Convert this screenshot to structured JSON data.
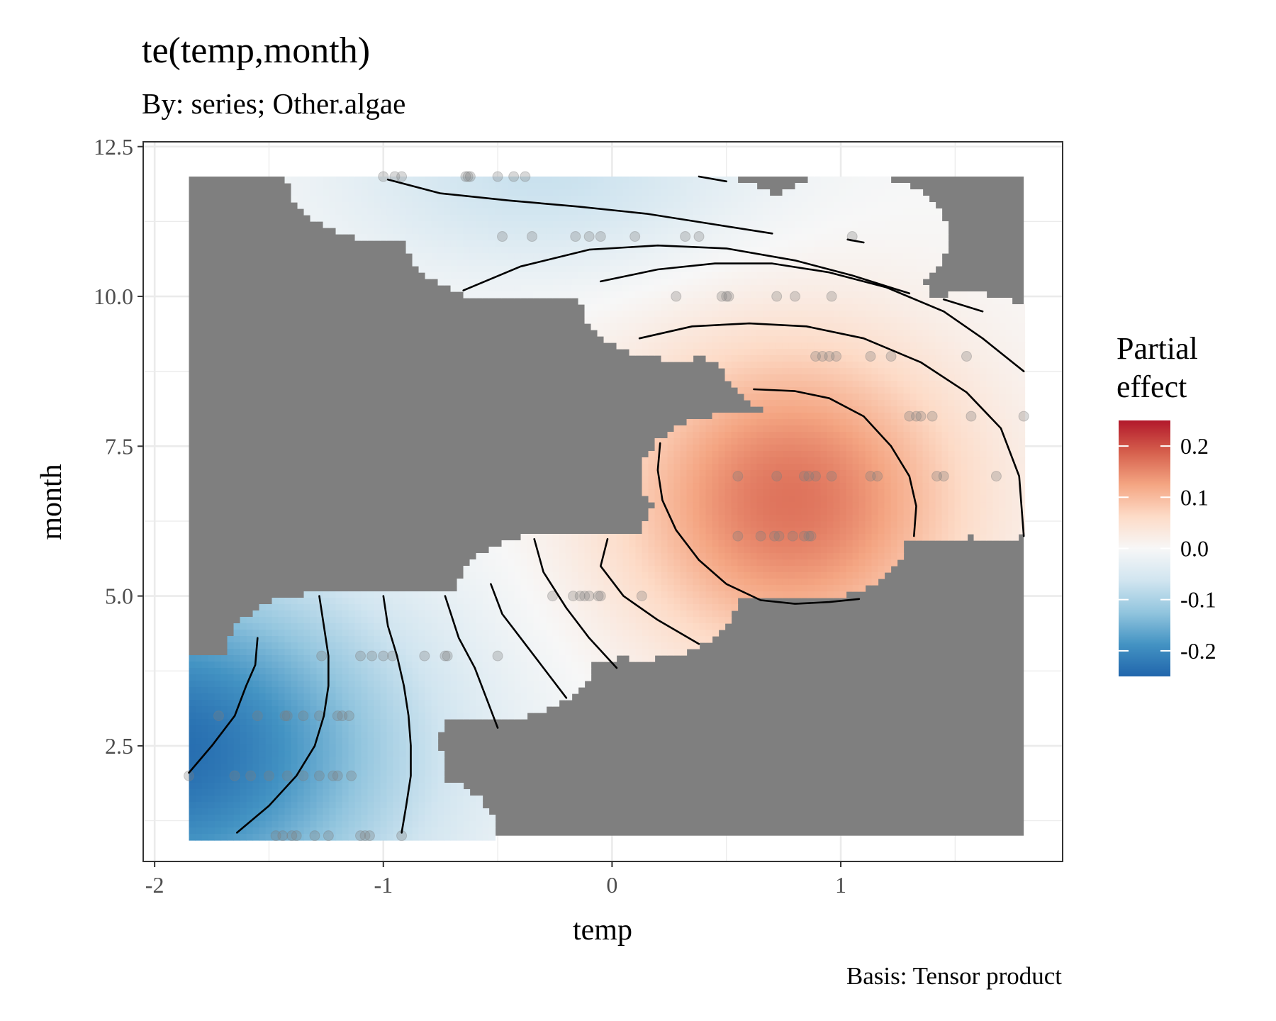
{
  "chart_data": {
    "type": "heatmap",
    "title": "te(temp,month)",
    "subtitle": "By: series; Other.algae",
    "caption": "Basis: Tensor product",
    "xlabel": "temp",
    "ylabel": "month",
    "xlim": [
      -2.05,
      1.97
    ],
    "ylim": [
      0.57,
      12.58
    ],
    "x_ticks": [
      -2,
      -1,
      0,
      1
    ],
    "x_tick_labels": [
      "-2",
      "-1",
      "0",
      "1"
    ],
    "y_ticks": [
      2.5,
      5.0,
      7.5,
      10.0,
      12.5
    ],
    "y_tick_labels": [
      "2.5",
      "5.0",
      "7.5",
      "10.0",
      "12.5"
    ],
    "grid": true,
    "grid_color": "#ebebeb",
    "na_color": "#7f7f7f",
    "panel_border_color": "#333333",
    "legend": {
      "title": "Partial effect",
      "title_lines": [
        "Partial",
        "effect"
      ],
      "position": "right",
      "range": [
        -0.25,
        0.25
      ],
      "breaks": [
        0.2,
        0.1,
        0.0,
        -0.1,
        -0.2
      ],
      "labels": [
        "0.2",
        "0.1",
        "0.0",
        "-0.1",
        "-0.2"
      ],
      "colors": [
        "#2166ac",
        "#4393c3",
        "#92c5de",
        "#d1e5f0",
        "#f7f7f7",
        "#fddbc7",
        "#f4a582",
        "#d6604d",
        "#b2182b"
      ]
    },
    "surface": {
      "x_range": [
        -1.85,
        1.8
      ],
      "y_range": [
        1.0,
        12.0
      ],
      "peak": {
        "x": 0.78,
        "y": 6.6,
        "value": 0.17
      },
      "trough": {
        "x": -1.95,
        "y": 2.4,
        "value": -0.24
      },
      "high_month_effect": {
        "x": -0.3,
        "y": 12.0,
        "value": -0.07
      }
    },
    "data_points": [
      [
        -1.85,
        2
      ],
      [
        -1.65,
        2
      ],
      [
        -1.58,
        2
      ],
      [
        -1.5,
        2
      ],
      [
        -1.42,
        2
      ],
      [
        -1.35,
        2
      ],
      [
        -1.28,
        2
      ],
      [
        -1.22,
        2
      ],
      [
        -1.2,
        2
      ],
      [
        -1.14,
        2
      ],
      [
        -1.47,
        1
      ],
      [
        -1.44,
        1
      ],
      [
        -1.4,
        1
      ],
      [
        -1.38,
        1
      ],
      [
        -1.3,
        1
      ],
      [
        -1.24,
        1
      ],
      [
        -1.1,
        1
      ],
      [
        -1.08,
        1
      ],
      [
        -1.06,
        1
      ],
      [
        -0.92,
        1
      ],
      [
        -1.72,
        3
      ],
      [
        -1.55,
        3
      ],
      [
        -1.43,
        3
      ],
      [
        -1.42,
        3
      ],
      [
        -1.35,
        3
      ],
      [
        -1.28,
        3
      ],
      [
        -1.2,
        3
      ],
      [
        -1.18,
        3
      ],
      [
        -1.15,
        3
      ],
      [
        -1.27,
        4
      ],
      [
        -1.1,
        4
      ],
      [
        -1.05,
        4
      ],
      [
        -1.0,
        4
      ],
      [
        -0.96,
        4
      ],
      [
        -0.82,
        4
      ],
      [
        -0.73,
        4
      ],
      [
        -0.72,
        4
      ],
      [
        -0.5,
        4
      ],
      [
        -0.26,
        5
      ],
      [
        -0.17,
        5
      ],
      [
        -0.14,
        5
      ],
      [
        -0.12,
        5
      ],
      [
        -0.1,
        5
      ],
      [
        -0.06,
        5
      ],
      [
        -0.05,
        5
      ],
      [
        0.13,
        5
      ],
      [
        0.55,
        6
      ],
      [
        0.65,
        6
      ],
      [
        0.71,
        6
      ],
      [
        0.73,
        6
      ],
      [
        0.79,
        6
      ],
      [
        0.84,
        6
      ],
      [
        0.86,
        6
      ],
      [
        0.87,
        6
      ],
      [
        0.55,
        7
      ],
      [
        0.72,
        7
      ],
      [
        0.84,
        7
      ],
      [
        0.86,
        7
      ],
      [
        0.89,
        7
      ],
      [
        0.96,
        7
      ],
      [
        1.13,
        7
      ],
      [
        1.16,
        7
      ],
      [
        1.42,
        7
      ],
      [
        1.45,
        7
      ],
      [
        1.68,
        7
      ],
      [
        1.3,
        8
      ],
      [
        1.33,
        8
      ],
      [
        1.35,
        8
      ],
      [
        1.4,
        8
      ],
      [
        1.57,
        8
      ],
      [
        1.8,
        8
      ],
      [
        0.89,
        9
      ],
      [
        0.92,
        9
      ],
      [
        0.95,
        9
      ],
      [
        0.98,
        9
      ],
      [
        1.13,
        9
      ],
      [
        1.22,
        9
      ],
      [
        1.55,
        9
      ],
      [
        0.28,
        10
      ],
      [
        0.48,
        10
      ],
      [
        0.5,
        10
      ],
      [
        0.51,
        10
      ],
      [
        0.72,
        10
      ],
      [
        0.8,
        10
      ],
      [
        0.96,
        10
      ],
      [
        -0.48,
        11
      ],
      [
        -0.35,
        11
      ],
      [
        -0.16,
        11
      ],
      [
        -0.1,
        11
      ],
      [
        -0.05,
        11
      ],
      [
        0.1,
        11
      ],
      [
        0.32,
        11
      ],
      [
        0.38,
        11
      ],
      [
        1.05,
        11
      ],
      [
        -1.0,
        12
      ],
      [
        -0.95,
        12
      ],
      [
        -0.92,
        12
      ],
      [
        -0.64,
        12
      ],
      [
        -0.63,
        12
      ],
      [
        -0.62,
        12
      ],
      [
        -0.5,
        12
      ],
      [
        -0.43,
        12
      ],
      [
        -0.38,
        12
      ]
    ],
    "contour_lines": [
      [
        [
          -1.85,
          2.05
        ],
        [
          -1.75,
          2.5
        ],
        [
          -1.65,
          3.0
        ],
        [
          -1.6,
          3.5
        ],
        [
          -1.56,
          3.85
        ],
        [
          -1.55,
          4.3
        ]
      ],
      [
        [
          -1.64,
          1.05
        ],
        [
          -1.5,
          1.5
        ],
        [
          -1.38,
          2.0
        ],
        [
          -1.3,
          2.5
        ],
        [
          -1.26,
          3.0
        ],
        [
          -1.24,
          3.5
        ],
        [
          -1.24,
          4.0
        ],
        [
          -1.26,
          4.5
        ],
        [
          -1.28,
          5.0
        ]
      ],
      [
        [
          -0.92,
          1.05
        ],
        [
          -0.9,
          1.5
        ],
        [
          -0.88,
          2.0
        ],
        [
          -0.88,
          2.5
        ],
        [
          -0.89,
          3.0
        ],
        [
          -0.91,
          3.5
        ],
        [
          -0.94,
          4.0
        ],
        [
          -0.98,
          4.5
        ],
        [
          -1.0,
          5.0
        ]
      ],
      [
        [
          -0.5,
          2.8
        ],
        [
          -0.55,
          3.3
        ],
        [
          -0.6,
          3.8
        ],
        [
          -0.67,
          4.3
        ],
        [
          -0.73,
          5.0
        ]
      ],
      [
        [
          -0.2,
          3.3
        ],
        [
          -0.3,
          3.8
        ],
        [
          -0.4,
          4.3
        ],
        [
          -0.48,
          4.7
        ],
        [
          -0.53,
          5.2
        ]
      ],
      [
        [
          0.02,
          3.8
        ],
        [
          -0.1,
          4.3
        ],
        [
          -0.2,
          4.8
        ],
        [
          -0.3,
          5.4
        ],
        [
          -0.34,
          5.95
        ]
      ],
      [
        [
          0.38,
          4.2
        ],
        [
          0.2,
          4.6
        ],
        [
          0.05,
          5.0
        ],
        [
          -0.05,
          5.5
        ],
        [
          -0.02,
          5.95
        ]
      ],
      [
        [
          1.08,
          4.95
        ],
        [
          0.95,
          4.9
        ],
        [
          0.8,
          4.87
        ],
        [
          0.65,
          4.93
        ],
        [
          0.5,
          5.2
        ],
        [
          0.38,
          5.6
        ],
        [
          0.28,
          6.1
        ],
        [
          0.22,
          6.6
        ],
        [
          0.2,
          7.1
        ],
        [
          0.21,
          7.55
        ]
      ],
      [
        [
          0.62,
          8.45
        ],
        [
          0.8,
          8.42
        ],
        [
          0.95,
          8.3
        ],
        [
          1.1,
          8.0
        ],
        [
          1.22,
          7.5
        ],
        [
          1.3,
          7.0
        ],
        [
          1.33,
          6.5
        ],
        [
          1.32,
          6.0
        ]
      ],
      [
        [
          0.12,
          9.3
        ],
        [
          0.35,
          9.5
        ],
        [
          0.6,
          9.55
        ],
        [
          0.85,
          9.5
        ],
        [
          1.1,
          9.3
        ],
        [
          1.35,
          8.9
        ],
        [
          1.55,
          8.4
        ],
        [
          1.7,
          7.8
        ],
        [
          1.78,
          7.0
        ],
        [
          1.8,
          6.0
        ]
      ],
      [
        [
          -0.05,
          10.25
        ],
        [
          0.2,
          10.45
        ],
        [
          0.45,
          10.55
        ],
        [
          0.7,
          10.55
        ],
        [
          0.95,
          10.4
        ],
        [
          1.2,
          10.15
        ],
        [
          1.45,
          9.75
        ],
        [
          1.62,
          9.3
        ],
        [
          1.8,
          8.75
        ]
      ],
      [
        [
          -0.65,
          10.1
        ],
        [
          -0.4,
          10.5
        ],
        [
          -0.1,
          10.78
        ],
        [
          0.2,
          10.85
        ],
        [
          0.5,
          10.8
        ],
        [
          0.8,
          10.6
        ],
        [
          1.05,
          10.35
        ],
        [
          1.3,
          10.05
        ]
      ],
      [
        [
          -0.98,
          11.95
        ],
        [
          -0.75,
          11.72
        ],
        [
          -0.45,
          11.6
        ],
        [
          -0.15,
          11.5
        ],
        [
          0.15,
          11.38
        ],
        [
          0.45,
          11.2
        ],
        [
          0.7,
          11.05
        ]
      ],
      [
        [
          0.38,
          12.0
        ],
        [
          0.5,
          11.92
        ]
      ],
      [
        [
          1.03,
          10.95
        ],
        [
          1.1,
          10.9
        ]
      ],
      [
        [
          1.45,
          9.95
        ],
        [
          1.62,
          9.75
        ]
      ]
    ]
  }
}
